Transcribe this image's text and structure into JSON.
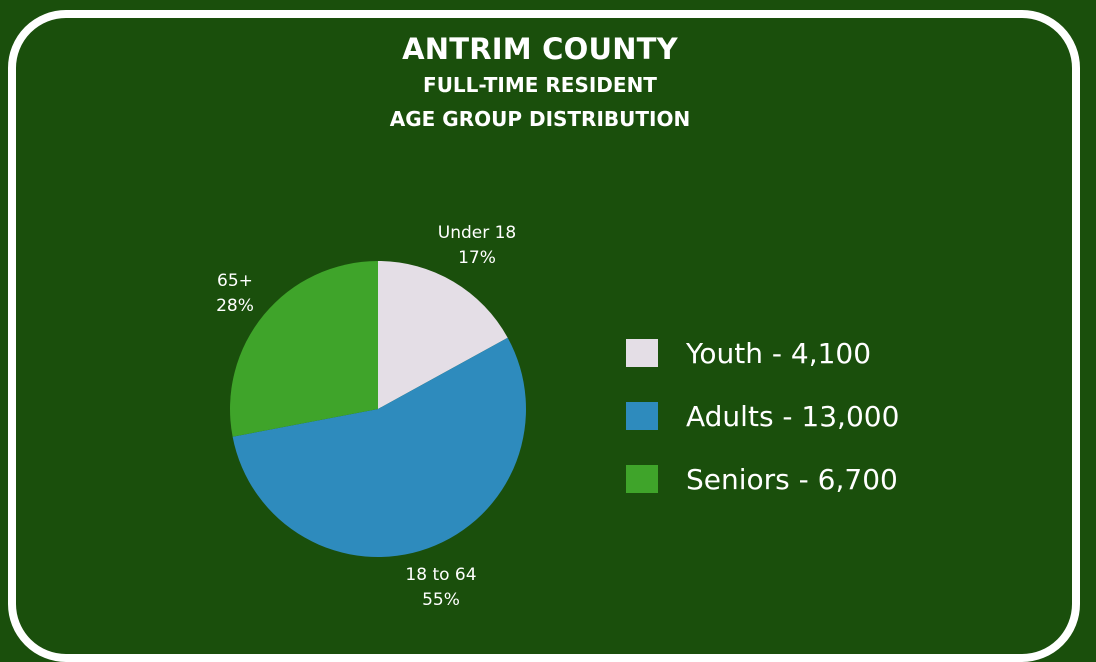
{
  "chart_data": {
    "type": "pie",
    "title": "ANTRIM COUNTY",
    "subtitle_lines": [
      "FULL-TIME RESIDENT",
      "AGE GROUP DISTRIBUTION"
    ],
    "slices": [
      {
        "label": "Under 18",
        "percent_label": "17%",
        "value": 17,
        "color": "#e4dee6"
      },
      {
        "label": "18 to 64",
        "percent_label": "55%",
        "value": 55,
        "color": "#2e8bbd"
      },
      {
        "label": "65+",
        "percent_label": "28%",
        "value": 28,
        "color": "#3fa42a"
      }
    ],
    "legend": [
      {
        "text": "Youth - 4,100",
        "color": "#e4dee6"
      },
      {
        "text": "Adults - 13,000",
        "color": "#2e8bbd"
      },
      {
        "text": "Seniors - 6,700",
        "color": "#3fa42a"
      }
    ],
    "legend_position": "right"
  },
  "colors": {
    "background": "#1a4f0c",
    "border": "#ffffff",
    "text": "#ffffff"
  }
}
